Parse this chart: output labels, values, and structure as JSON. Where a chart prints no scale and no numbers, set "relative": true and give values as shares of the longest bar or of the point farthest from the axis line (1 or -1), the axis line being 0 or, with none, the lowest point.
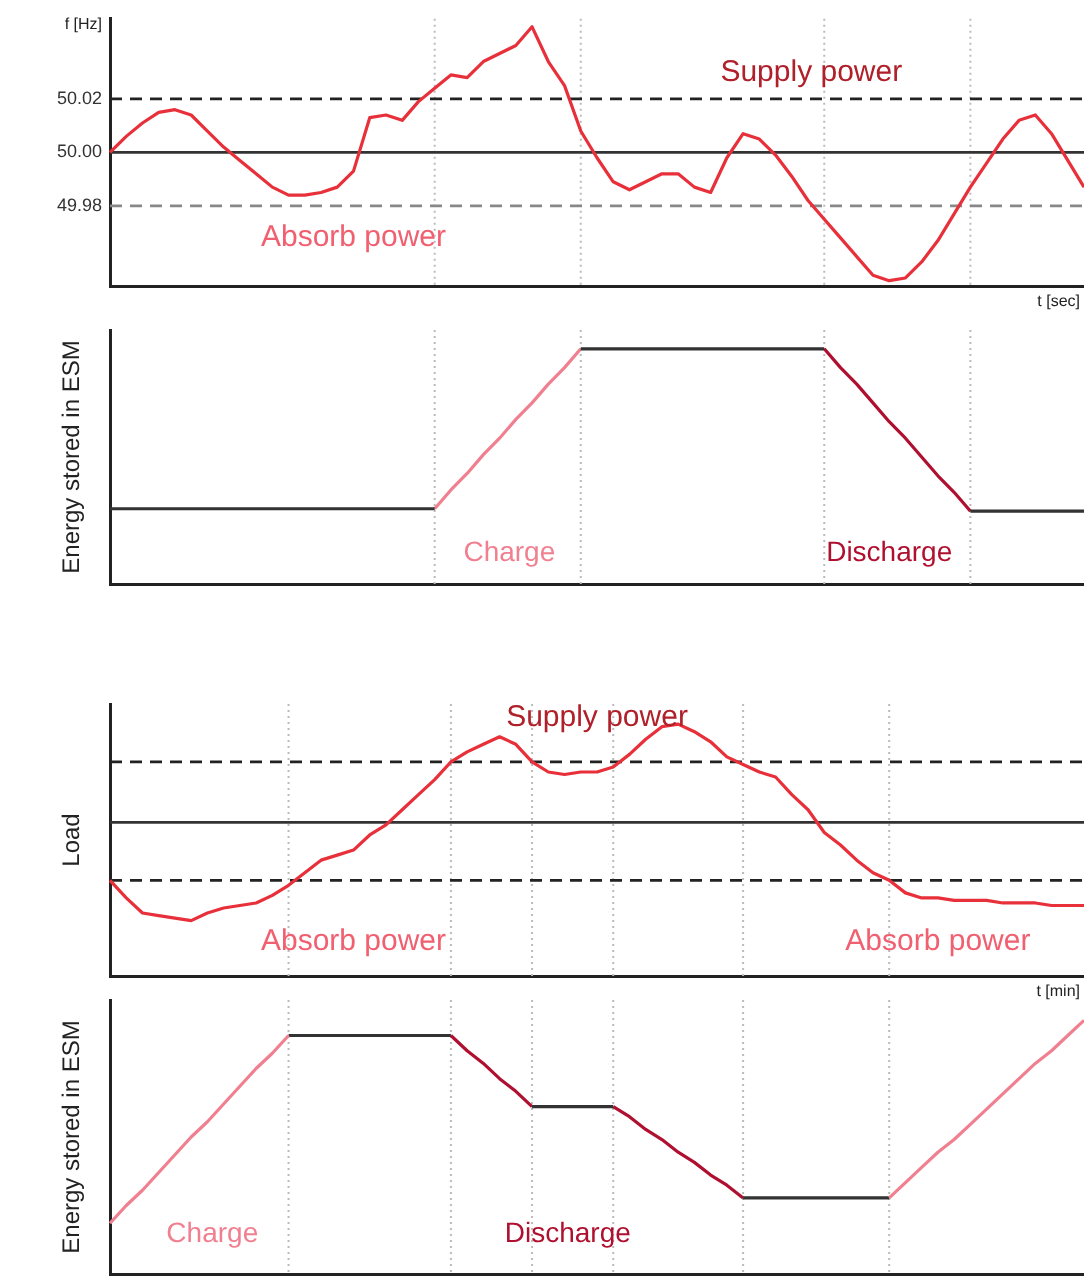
{
  "chart_data": [
    {
      "type": "line",
      "ylabel": "f [Hz]",
      "xlabel": "t [sec]",
      "tick_labels": "y",
      "marker": "none",
      "grid": "x",
      "categories": [
        null,
        null,
        null,
        null,
        null,
        null,
        null,
        null,
        null,
        null,
        null,
        null,
        null,
        null,
        null,
        null,
        null,
        null,
        null,
        null,
        null,
        null,
        null,
        null,
        null,
        null,
        null,
        null,
        null,
        null,
        null,
        null,
        null,
        null,
        null,
        null,
        null,
        null,
        null,
        null,
        null,
        null,
        null,
        null,
        null,
        null,
        null,
        null,
        null,
        null,
        null,
        null,
        null,
        null,
        null,
        null,
        null,
        null,
        null,
        null,
        null
      ],
      "series": [
        {
          "color": "#e8303a",
          "values": [
            50.0,
            50.006,
            50.011,
            50.015,
            50.016,
            50.014,
            50.008,
            50.002,
            49.997,
            49.992,
            49.987,
            49.984,
            49.984,
            49.985,
            49.987,
            49.993,
            50.013,
            50.014,
            50.012,
            50.019,
            50.024,
            50.029,
            50.028,
            50.034,
            50.037,
            50.04,
            50.047,
            50.034,
            50.025,
            50.008,
            49.998,
            49.989,
            49.986,
            49.989,
            49.992,
            49.992,
            49.987,
            49.985,
            49.998,
            50.007,
            50.005,
            49.999,
            49.991,
            49.982,
            49.975,
            49.968,
            49.961,
            49.954,
            49.952,
            49.953,
            49.959,
            49.967,
            49.977,
            49.987,
            49.996,
            50.005,
            50.012,
            50.014,
            50.007,
            49.997,
            49.987
          ]
        }
      ],
      "ylim": [
        49.95,
        50.05
      ],
      "yticks": [
        {
          "value": 50.02,
          "label": "50.02"
        },
        {
          "value": 50,
          "label": "50.00"
        },
        {
          "value": 49.98,
          "label": "49.98"
        }
      ],
      "ref_lines": [
        {
          "axis": "y",
          "value": 50.02,
          "color": "#222222",
          "line_style": "dashed"
        },
        {
          "axis": "y",
          "value": 50,
          "color": "#333333",
          "line_style": "solid"
        },
        {
          "axis": "y",
          "value": 49.98,
          "color": "#888888",
          "line_style": "dashed"
        }
      ],
      "annotations": [
        "Supply power",
        "Absorb power"
      ]
    },
    {
      "type": "line",
      "ylabel": "Energy stored in ESM",
      "tick_labels": false,
      "marker": "none",
      "relative": true,
      "grid": "x",
      "categories": [
        null,
        null,
        null,
        null,
        null,
        null,
        null,
        null,
        null,
        null,
        null,
        null,
        null,
        null,
        null,
        null,
        null,
        null,
        null,
        null,
        null,
        null,
        null,
        null,
        null,
        null,
        null,
        null,
        null,
        null,
        null,
        null,
        null,
        null,
        null,
        null,
        null,
        null,
        null,
        null,
        null,
        null,
        null,
        null,
        null,
        null,
        null,
        null,
        null,
        null,
        null,
        null,
        null,
        null,
        null,
        null,
        null,
        null,
        null,
        null,
        null
      ],
      "series": [
        {
          "color": "#333333",
          "values": [
            0.32,
            0.32,
            0.32,
            0.32,
            0.32,
            0.32,
            0.32,
            0.32,
            0.32,
            0.32,
            0.32,
            0.32,
            0.32,
            0.32,
            0.32,
            0.32,
            0.32,
            0.32,
            0.32,
            0.32,
            0.32,
            null,
            null,
            null,
            null,
            null,
            null,
            null,
            null,
            1,
            1,
            1,
            1,
            1,
            1,
            1,
            1,
            1,
            1,
            1,
            1,
            1,
            1,
            1,
            1,
            null,
            null,
            null,
            null,
            null,
            null,
            null,
            null,
            0.31,
            0.31,
            0.31,
            0.31,
            0.31,
            0.31,
            0.31,
            0.31
          ]
        },
        {
          "color": "#f08090",
          "values": [
            null,
            null,
            null,
            null,
            null,
            null,
            null,
            null,
            null,
            null,
            null,
            null,
            null,
            null,
            null,
            null,
            null,
            null,
            null,
            null,
            0.32,
            0.4,
            0.47,
            0.55,
            0.62,
            0.7,
            0.77,
            0.85,
            0.92,
            1.0,
            null,
            null,
            null,
            null,
            null,
            null,
            null,
            null,
            null,
            null,
            null,
            null,
            null,
            null,
            null,
            null,
            null,
            null,
            null,
            null,
            null,
            null,
            null,
            null,
            null,
            null,
            null,
            null,
            null,
            null,
            null
          ]
        },
        {
          "color": "#b01030",
          "values": [
            null,
            null,
            null,
            null,
            null,
            null,
            null,
            null,
            null,
            null,
            null,
            null,
            null,
            null,
            null,
            null,
            null,
            null,
            null,
            null,
            null,
            null,
            null,
            null,
            null,
            null,
            null,
            null,
            null,
            null,
            null,
            null,
            null,
            null,
            null,
            null,
            null,
            null,
            null,
            null,
            null,
            null,
            null,
            null,
            1.0,
            0.92,
            0.85,
            0.77,
            0.69,
            0.62,
            0.54,
            0.46,
            0.39,
            0.31,
            null,
            null,
            null,
            null,
            null,
            null,
            null
          ]
        }
      ],
      "annotations": [
        "Charge",
        "Discharge"
      ]
    },
    {
      "type": "line",
      "ylabel": "Load",
      "xlabel": "t [min]",
      "tick_labels": false,
      "marker": "none",
      "relative": true,
      "grid": "x",
      "categories": [
        null,
        null,
        null,
        null,
        null,
        null,
        null,
        null,
        null,
        null,
        null,
        null,
        null,
        null,
        null,
        null,
        null,
        null,
        null,
        null,
        null,
        null,
        null,
        null,
        null,
        null,
        null,
        null,
        null,
        null,
        null,
        null,
        null,
        null,
        null,
        null,
        null,
        null,
        null,
        null,
        null,
        null,
        null,
        null,
        null,
        null,
        null,
        null,
        null,
        null,
        null,
        null,
        null,
        null,
        null,
        null,
        null,
        null,
        null,
        null,
        null
      ],
      "series": [
        {
          "color": "#e8303a",
          "values": [
            0.38,
            0.31,
            0.25,
            0.24,
            0.23,
            0.22,
            0.25,
            0.27,
            0.28,
            0.29,
            0.32,
            0.36,
            0.41,
            0.46,
            0.48,
            0.5,
            0.56,
            0.6,
            0.66,
            0.72,
            0.78,
            0.85,
            0.89,
            0.92,
            0.95,
            0.92,
            0.85,
            0.81,
            0.8,
            0.81,
            0.81,
            0.83,
            0.88,
            0.94,
            0.99,
            1.0,
            0.97,
            0.93,
            0.87,
            0.84,
            0.81,
            0.79,
            0.72,
            0.66,
            0.57,
            0.52,
            0.46,
            0.41,
            0.38,
            0.33,
            0.31,
            0.31,
            0.3,
            0.3,
            0.3,
            0.29,
            0.29,
            0.29,
            0.28,
            0.28,
            0.28
          ]
        }
      ],
      "ref_lines": [
        {
          "axis": "y",
          "value": 0.85,
          "color": "#222222",
          "line_style": "dashed"
        },
        {
          "axis": "y",
          "value": 0.61,
          "color": "#333333",
          "line_style": "solid"
        },
        {
          "axis": "y",
          "value": 0.38,
          "color": "#222222",
          "line_style": "dashed"
        }
      ],
      "annotations": [
        "Supply power",
        "Absorb power",
        "Absorb power"
      ]
    },
    {
      "type": "line",
      "ylabel": "Energy stored in ESM",
      "tick_labels": false,
      "marker": "none",
      "relative": true,
      "grid": "x",
      "categories": [
        null,
        null,
        null,
        null,
        null,
        null,
        null,
        null,
        null,
        null,
        null,
        null,
        null,
        null,
        null,
        null,
        null,
        null,
        null,
        null,
        null,
        null,
        null,
        null,
        null,
        null,
        null,
        null,
        null,
        null,
        null,
        null,
        null,
        null,
        null,
        null,
        null,
        null,
        null,
        null,
        null,
        null,
        null,
        null,
        null,
        null,
        null,
        null,
        null,
        null,
        null,
        null,
        null,
        null,
        null,
        null,
        null,
        null,
        null,
        null,
        null
      ],
      "series": [
        {
          "color": "#f08090",
          "values": [
            0.2,
            0.27,
            0.33,
            0.4,
            0.47,
            0.54,
            0.6,
            0.67,
            0.74,
            0.81,
            0.87,
            0.94,
            null,
            null,
            null,
            null,
            null,
            null,
            null,
            null,
            null,
            null,
            null,
            null,
            null,
            null,
            null,
            null,
            null,
            null,
            null,
            null,
            null,
            null,
            null,
            null,
            null,
            null,
            null,
            null,
            null,
            null,
            null,
            null,
            null,
            null,
            null,
            null,
            0.3,
            0.36,
            0.42,
            0.48,
            0.53,
            0.59,
            0.65,
            0.71,
            0.77,
            0.83,
            0.88,
            0.94,
            1.0
          ]
        },
        {
          "color": "#333333",
          "values": [
            null,
            null,
            null,
            null,
            null,
            null,
            null,
            null,
            null,
            null,
            null,
            0.94,
            0.94,
            0.94,
            0.94,
            0.94,
            0.94,
            0.94,
            0.94,
            0.94,
            0.94,
            0.94,
            null,
            null,
            null,
            null,
            0.66,
            0.66,
            0.66,
            0.66,
            0.66,
            0.66,
            null,
            null,
            null,
            null,
            null,
            null,
            null,
            0.3,
            0.3,
            0.3,
            0.3,
            0.3,
            0.3,
            0.3,
            0.3,
            0.3,
            0.3,
            null,
            null,
            null,
            null,
            null,
            null,
            null,
            null,
            null,
            null,
            null,
            null
          ]
        },
        {
          "color": "#b01030",
          "values": [
            null,
            null,
            null,
            null,
            null,
            null,
            null,
            null,
            null,
            null,
            null,
            null,
            null,
            null,
            null,
            null,
            null,
            null,
            null,
            null,
            null,
            0.94,
            0.88,
            0.83,
            0.77,
            0.72,
            0.66,
            null,
            null,
            null,
            null,
            0.66,
            0.62,
            0.57,
            0.53,
            0.48,
            0.44,
            0.39,
            0.35,
            0.3,
            null,
            null,
            null,
            null,
            null,
            null,
            null,
            null,
            null,
            null,
            null,
            null,
            null,
            null,
            null,
            null,
            null,
            null,
            null,
            null,
            null
          ]
        }
      ],
      "annotations": [
        "Charge",
        "Discharge"
      ]
    }
  ]
}
